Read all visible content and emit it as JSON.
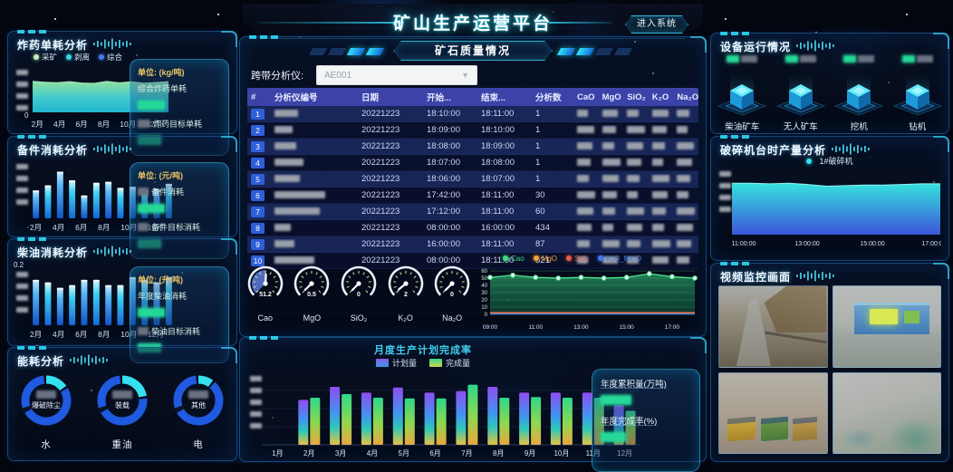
{
  "header": {
    "title": "矿山生产运营平台",
    "enter_button": "进入系统"
  },
  "left_panels": {
    "explosive": {
      "title": "炸药单耗分析",
      "legend": [
        {
          "label": "采矿",
          "color": "#c8f0c0"
        },
        {
          "label": "剥离",
          "color": "#35d8e8"
        },
        {
          "label": "综合",
          "color": "#4a7af0"
        }
      ],
      "unit": "单位: (kg/吨)",
      "stats": [
        {
          "label": "综合炸药单耗"
        },
        {
          "label": "炸药目标单耗"
        }
      ],
      "x_labels": [
        "2月",
        "4月",
        "6月",
        "8月",
        "10月",
        "12月"
      ],
      "y_origin": "0",
      "y_max": 0.2,
      "series": [
        0.155,
        0.15,
        0.148,
        0.153,
        0.146,
        0.144,
        0.155,
        0.147,
        0.152,
        0.145,
        0.149,
        0.153
      ]
    },
    "spare": {
      "title": "备件消耗分析",
      "unit": "单位: (元/吨)",
      "stats": [
        {
          "label": "备件消耗"
        },
        {
          "label": "备件目标消耗"
        }
      ],
      "x_labels": [
        "2月",
        "4月",
        "6月",
        "8月",
        "10月",
        "12月"
      ],
      "y_max": 100,
      "series": [
        55,
        65,
        92,
        75,
        45,
        70,
        72,
        60,
        62,
        55,
        58,
        68
      ]
    },
    "diesel": {
      "title": "柴油消耗分析",
      "unit": "单位: (升/吨)",
      "stats": [
        {
          "label": "年度柴油消耗"
        },
        {
          "label": "柴油目标消耗"
        }
      ],
      "x_labels": [
        "2月",
        "4月",
        "6月",
        "8月",
        "10月",
        "12月"
      ],
      "y_top": "0.2",
      "y_max": 0.2,
      "series": [
        0.17,
        0.16,
        0.14,
        0.15,
        0.17,
        0.17,
        0.15,
        0.15,
        0.18,
        0.17,
        0.16,
        0.18
      ]
    },
    "energy": {
      "title": "能耗分析",
      "donuts": [
        {
          "name": "水",
          "inner_label": "爆破除尘",
          "main_color": "#1f5ae0",
          "seg_color": "#35e0f0",
          "seg_pct": 15
        },
        {
          "name": "重油",
          "inner_label": "装载",
          "main_color": "#1f5ae0",
          "seg_color": "#35e0f0",
          "seg_pct": 22
        },
        {
          "name": "电",
          "inner_label": "其他",
          "main_color": "#1f5ae0",
          "seg_color": "#35e0f0",
          "seg_pct": 10
        }
      ]
    }
  },
  "center": {
    "tab_title": "矿石质量情况",
    "analyzer_select": {
      "label": "跨带分析仪:",
      "value": "AE001"
    },
    "table": {
      "columns": [
        "#",
        "分析仪编号",
        "日期",
        "开始...",
        "结束...",
        "分析数",
        "CaO",
        "MgO",
        "SiO₂",
        "K₂O",
        "Na₂O"
      ],
      "rows": [
        {
          "idx": "1",
          "date": "20221223",
          "start": "18:10:00",
          "end": "18:11:00",
          "count": "1"
        },
        {
          "idx": "2",
          "date": "20221223",
          "start": "18:09:00",
          "end": "18:10:00",
          "count": "1"
        },
        {
          "idx": "3",
          "date": "20221223",
          "start": "18:08:00",
          "end": "18:09:00",
          "count": "1"
        },
        {
          "idx": "4",
          "date": "20221223",
          "start": "18:07:00",
          "end": "18:08:00",
          "count": "1"
        },
        {
          "idx": "5",
          "date": "20221223",
          "start": "18:06:00",
          "end": "18:07:00",
          "count": "1"
        },
        {
          "idx": "6",
          "date": "20221223",
          "start": "17:42:00",
          "end": "18:11:00",
          "count": "30"
        },
        {
          "idx": "7",
          "date": "20221223",
          "start": "17:12:00",
          "end": "18:11:00",
          "count": "60"
        },
        {
          "idx": "8",
          "date": "20221223",
          "start": "08:00:00",
          "end": "16:00:00",
          "count": "434"
        },
        {
          "idx": "9",
          "date": "20221223",
          "start": "16:00:00",
          "end": "18:11:00",
          "count": "87"
        },
        {
          "idx": "10",
          "date": "20221223",
          "start": "08:00:00",
          "end": "18:11:00",
          "count": "521"
        }
      ]
    },
    "gauges": [
      {
        "label": "Cao",
        "value": "51.2",
        "num": 51.2,
        "max": 100
      },
      {
        "label": "MgO",
        "value": "0.5",
        "num": 0.5,
        "max": 100
      },
      {
        "label": "SiO₂",
        "value": "0",
        "num": 0,
        "max": 100
      },
      {
        "label": "K₂O",
        "value": "2",
        "num": 2,
        "max": 100
      },
      {
        "label": "Na₂O",
        "value": "0",
        "num": 0,
        "max": 100
      }
    ],
    "quality_line": {
      "legend": [
        {
          "label": "Cao",
          "color": "#3ddc84"
        },
        {
          "label": "MgO",
          "color": "#f0a03a"
        },
        {
          "label": "SiO₂",
          "color": "#e85b4a"
        },
        {
          "label": "K₂O_Na₂O",
          "color": "#3a7af0"
        }
      ],
      "y_ticks": [
        0,
        10,
        20,
        30,
        40,
        50,
        60
      ],
      "x_labels": [
        "09:00",
        "11:00",
        "13:00",
        "15:00",
        "17:00"
      ],
      "cao": [
        51,
        54,
        51,
        50,
        51,
        50,
        51,
        56,
        52,
        50
      ],
      "mgo_level": 1.2,
      "sio2_level": 2.2,
      "k2o_na2o_level": 0.5
    },
    "monthly": {
      "title": "月度生产计划完成率",
      "legend": [
        {
          "label": "计划量"
        },
        {
          "label": "完成量"
        }
      ],
      "x_labels": [
        "1月",
        "2月",
        "3月",
        "4月",
        "5月",
        "6月",
        "7月",
        "8月",
        "9月",
        "10月",
        "11月",
        "12月"
      ],
      "plan": [
        null,
        62,
        80,
        72,
        79,
        72,
        74,
        80,
        72,
        72,
        72,
        55
      ],
      "done": [
        null,
        65,
        70,
        65,
        64,
        64,
        83,
        65,
        66,
        65,
        65,
        47
      ],
      "info": [
        {
          "label": "年度累积量(万吨)"
        },
        {
          "label": "年度完成率(%)"
        }
      ]
    }
  },
  "right_panels": {
    "equipment": {
      "title": "设备运行情况",
      "items": [
        {
          "label": "柴油矿车"
        },
        {
          "label": "无人矿车"
        },
        {
          "label": "挖机"
        },
        {
          "label": "钻机"
        }
      ]
    },
    "crusher": {
      "title": "破碎机台时产量分析",
      "legend": "1#破碎机",
      "x_labels": [
        "11:00:00",
        "13:00:00",
        "15:00:00",
        "17:00:00"
      ],
      "y_max": 1,
      "series": [
        0.86,
        0.86,
        0.85,
        0.86,
        0.84,
        0.81,
        0.82,
        0.83,
        0.83,
        0.84,
        0.85,
        0.85
      ]
    },
    "video": {
      "title": "视频监控画面",
      "camera_count": 4
    }
  }
}
